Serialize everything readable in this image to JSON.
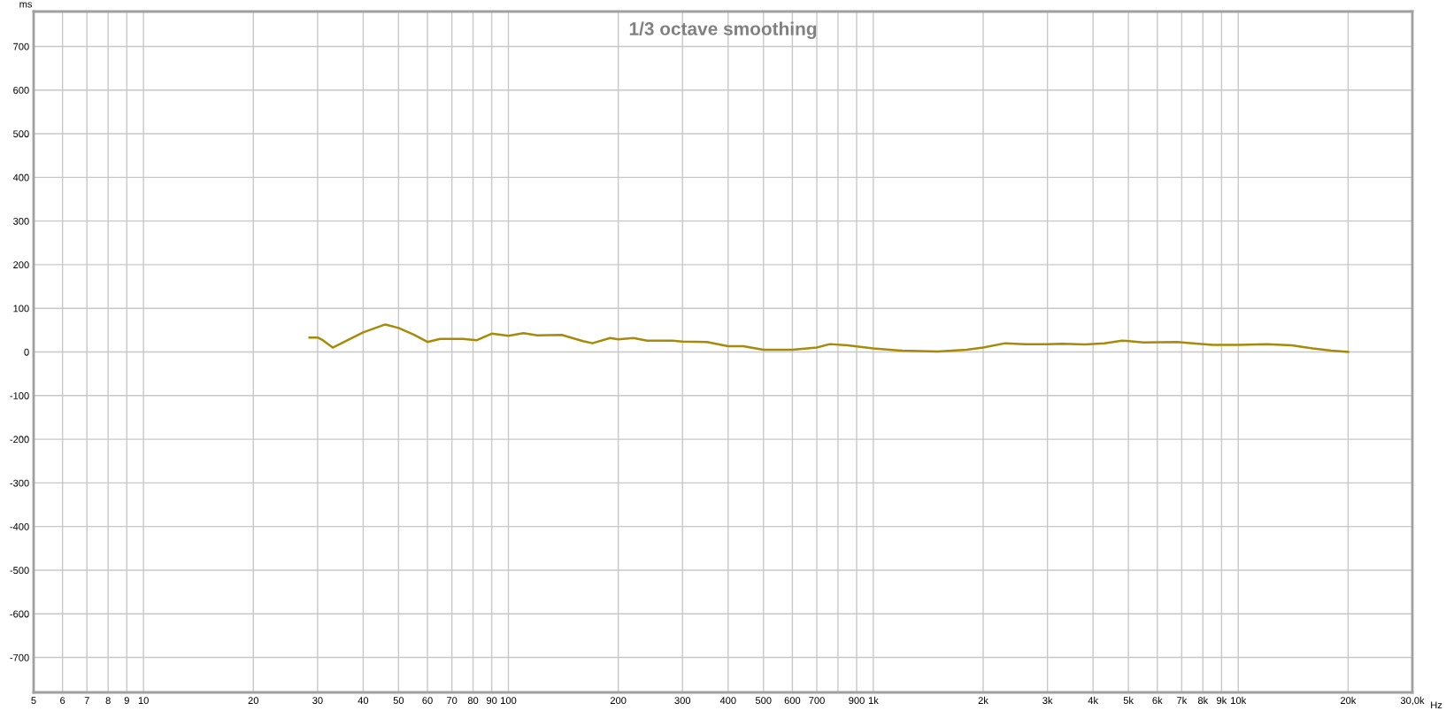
{
  "chart_data": {
    "type": "line",
    "title": "1/3 octave smoothing",
    "xlabel": "Hz",
    "ylabel": "ms",
    "log": "x",
    "grid": true,
    "marker": "none",
    "line_style": "solid",
    "xlim": [
      5,
      30000
    ],
    "ylim": [
      -780,
      780
    ],
    "xticks": [
      5,
      6,
      7,
      8,
      9,
      10,
      20,
      30,
      40,
      50,
      60,
      70,
      80,
      90,
      100,
      200,
      300,
      400,
      500,
      600,
      700,
      {
        "value": 800,
        "label": null
      },
      900,
      {
        "value": 1000,
        "label": "1k"
      },
      {
        "value": 2000,
        "label": "2k"
      },
      {
        "value": 3000,
        "label": "3k"
      },
      {
        "value": 4000,
        "label": "4k"
      },
      {
        "value": 5000,
        "label": "5k"
      },
      {
        "value": 6000,
        "label": "6k"
      },
      {
        "value": 7000,
        "label": "7k"
      },
      {
        "value": 8000,
        "label": "8k"
      },
      {
        "value": 9000,
        "label": "9k"
      },
      {
        "value": 10000,
        "label": "10k"
      },
      {
        "value": 20000,
        "label": "20k"
      },
      {
        "value": 30000,
        "label": "30,0k"
      }
    ],
    "yticks": [
      -700,
      -600,
      -500,
      -400,
      -300,
      -200,
      -100,
      0,
      100,
      200,
      300,
      400,
      500,
      600,
      700
    ],
    "series": [
      {
        "color": "#a88a0a",
        "x": [
          28.5,
          30,
          31,
          33,
          40,
          46,
          50,
          55,
          60,
          65,
          75,
          82,
          90,
          100,
          110,
          120,
          140,
          160,
          170,
          190,
          200,
          220,
          240,
          280,
          300,
          350,
          400,
          440,
          500,
          600,
          700,
          760,
          850,
          1000,
          1200,
          1500,
          1800,
          2000,
          2300,
          2600,
          3000,
          3300,
          3800,
          4300,
          4800,
          5500,
          6800,
          7500,
          8500,
          10000,
          12000,
          14000,
          16000,
          18000,
          20000
        ],
        "values": [
          33,
          33,
          27,
          10,
          45,
          63,
          55,
          40,
          23,
          30,
          30,
          27,
          42,
          37,
          43,
          38,
          39,
          25,
          20,
          32,
          29,
          32,
          26,
          26,
          24,
          23,
          13,
          13,
          5,
          5,
          10,
          18,
          15,
          8,
          3,
          1,
          5,
          10,
          20,
          18,
          18,
          19,
          17,
          20,
          26,
          22,
          23,
          20,
          16,
          16,
          18,
          15,
          8,
          3,
          0
        ]
      }
    ]
  }
}
